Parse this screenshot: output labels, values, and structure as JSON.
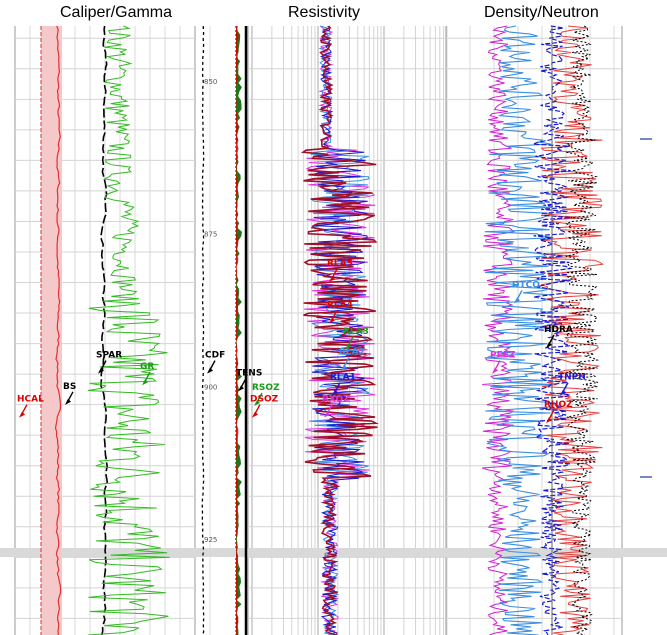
{
  "tracks": [
    {
      "title": "Caliper/Gamma"
    },
    {
      "title": "Resistivity"
    },
    {
      "title": "Density/Neutron"
    }
  ],
  "colors": {
    "gamma": "#33bb22",
    "caliper": "#e23030",
    "resistivity_deep": "#a01028",
    "resistivity_shallow": "#e030e0",
    "neutron": "#1a1acc",
    "sonic": "#3a8fe0",
    "density": "#e64040",
    "pef": "#d020d0",
    "fill_green": "#1a7a1a",
    "fill_red": "#dd0000"
  },
  "chart_data": {
    "type": "line",
    "title": "",
    "xlabel": "",
    "ylabel": "",
    "depth_ticks": [
      "850",
      "875",
      "900",
      "925"
    ],
    "ylim": [
      838,
      947
    ],
    "curve_labels": [
      {
        "text": "BS",
        "color": "#000000",
        "track": "Caliper/Gamma",
        "depth": 900.4
      },
      {
        "text": "HCAL",
        "color": "#e00000",
        "track": "Caliper/Gamma",
        "depth": 902.5
      },
      {
        "text": "SPAR",
        "color": "#000000",
        "track": "Caliper/Gamma",
        "depth": 895.3
      },
      {
        "text": "GR",
        "color": "#1a9a1a",
        "track": "Caliper/Gamma",
        "depth": 897.2
      },
      {
        "text": "CDF",
        "color": "#000000",
        "track": "Caliper/Gamma",
        "depth": 895.3
      },
      {
        "text": "TENS",
        "color": "#000000",
        "track": "Resistivity",
        "depth": 898.2
      },
      {
        "text": "RSOZ",
        "color": "#1a9a1a",
        "track": "Resistivity",
        "depth": 900.6
      },
      {
        "text": "DSOZ",
        "color": "#e00000",
        "track": "Resistivity",
        "depth": 902.5
      },
      {
        "text": "RLA5",
        "color": "#e00000",
        "track": "Resistivity",
        "depth": 880.3
      },
      {
        "text": "RLA4",
        "color": "#e00000",
        "track": "Resistivity",
        "depth": 887.1
      },
      {
        "text": "RLA3",
        "color": "#1a9a1a",
        "track": "Resistivity",
        "depth": 891.4
      },
      {
        "text": "RLA2",
        "color": "#3a8fe0",
        "track": "Resistivity",
        "depth": 894.8
      },
      {
        "text": "RLA1",
        "color": "#1a1acc",
        "track": "Resistivity",
        "depth": 898.9
      },
      {
        "text": "RXOZ",
        "color": "#e030e0",
        "track": "Resistivity",
        "depth": 902.5
      },
      {
        "text": "DTCO",
        "color": "#3a8fe0",
        "track": "Density/Neutron",
        "depth": 883.8
      },
      {
        "text": "HDRA",
        "color": "#000000",
        "track": "Density/Neutron",
        "depth": 891.1
      },
      {
        "text": "PEFZ",
        "color": "#e030e0",
        "track": "Density/Neutron",
        "depth": 895.3
      },
      {
        "text": "TNPH",
        "color": "#1a1acc",
        "track": "Density/Neutron",
        "depth": 898.9
      },
      {
        "text": "RHOZ",
        "color": "#e00000",
        "track": "Density/Neutron",
        "depth": 903.4
      }
    ],
    "legend": "none",
    "grid": true
  }
}
